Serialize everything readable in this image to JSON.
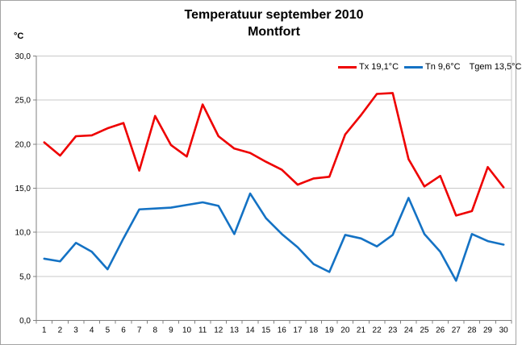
{
  "window": {
    "background": "#ffffff",
    "border_color": "#a3a3a3"
  },
  "chart_data": {
    "type": "line",
    "title": "Temperatuur september 2010",
    "subtitle": "Montfort",
    "y_unit_label": "°C",
    "x": [
      1,
      2,
      3,
      4,
      5,
      6,
      7,
      8,
      9,
      10,
      11,
      12,
      13,
      14,
      15,
      16,
      17,
      18,
      19,
      20,
      21,
      22,
      23,
      24,
      25,
      26,
      27,
      28,
      29,
      30
    ],
    "series": [
      {
        "name": "Tx",
        "legend_label": "Tx 19,1°C",
        "color": "#ee0000",
        "values": [
          20.2,
          18.7,
          20.9,
          21.0,
          21.8,
          22.4,
          17.0,
          23.2,
          19.9,
          18.6,
          24.5,
          20.9,
          19.5,
          19.0,
          18.0,
          17.1,
          15.4,
          16.1,
          16.3,
          21.1,
          23.3,
          25.7,
          25.8,
          18.3,
          15.2,
          16.4,
          11.9,
          12.4,
          17.4,
          15.1
        ]
      },
      {
        "name": "Tn",
        "legend_label": "Tn 9,6°C",
        "color": "#1472c4",
        "values": [
          7.0,
          6.7,
          8.8,
          7.8,
          5.8,
          9.3,
          12.6,
          12.7,
          12.8,
          13.1,
          13.4,
          13.0,
          9.8,
          14.4,
          11.6,
          9.8,
          8.3,
          6.4,
          5.5,
          9.7,
          9.3,
          8.4,
          9.7,
          13.9,
          9.8,
          7.8,
          4.5,
          9.8,
          9.0,
          8.6
        ]
      }
    ],
    "extra_legend": [
      {
        "name": "Tgem",
        "legend_label": "Tgem 13,5°C"
      }
    ],
    "ylim": [
      0,
      30
    ],
    "y_tick_step": 5,
    "y_tick_labels": [
      "30,0",
      "25,0",
      "20,0",
      "15,0",
      "10,0",
      "5,0",
      "0,0"
    ],
    "grid": true,
    "grid_color": "#c8c8c8",
    "axis_color": "#808080",
    "legend_position": "top-right-inside"
  }
}
